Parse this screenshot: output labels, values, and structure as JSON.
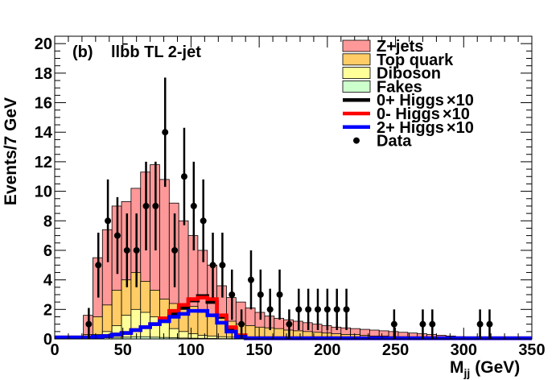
{
  "chart_data": {
    "type": "histogram-stacked",
    "panel_label": "(b)",
    "channel_label": "llb̄b TL 2-jet",
    "xlabel": "M",
    "xlabel_sub": "jj",
    "xlabel_unit": "(GeV)",
    "ylabel": "Events/7 GeV",
    "xlim": [
      0,
      350
    ],
    "ylim": [
      0,
      20.5
    ],
    "x_ticks": [
      0,
      50,
      100,
      150,
      200,
      250,
      300,
      350
    ],
    "y_ticks": [
      0,
      2,
      4,
      6,
      8,
      10,
      12,
      14,
      16,
      18,
      20
    ],
    "bin_width": 7,
    "bin_edges_start": 21,
    "stack": [
      {
        "name": "Z+jets",
        "legend": "Z+jets",
        "color": "#ff9999",
        "totals": [
          1.6,
          5.5,
          7.4,
          9.0,
          9.3,
          10.2,
          11.3,
          11.8,
          10.8,
          9.2,
          8.0,
          7.0,
          6.0,
          5.0,
          3.6,
          2.8,
          2.5,
          2.1,
          1.8,
          1.55,
          1.4,
          1.3,
          1.2,
          1.1,
          1.0,
          0.9,
          0.8,
          0.75,
          0.7,
          0.65,
          0.6,
          0.55,
          0.5,
          0.45,
          0.4,
          0.35,
          0.3,
          0.25,
          0.2,
          0.15,
          0.1
        ]
      },
      {
        "name": "Top quark",
        "legend": "Top quark",
        "color": "#ffcc66",
        "totals": [
          0.3,
          1.5,
          2.3,
          3.3,
          4.0,
          4.5,
          3.9,
          3.3,
          2.7,
          2.4,
          2.3,
          2.2,
          1.8,
          1.6,
          1.4,
          1.2,
          1.0,
          0.9,
          0.8,
          0.75,
          0.7,
          0.6,
          0.55,
          0.5,
          0.45,
          0.4,
          0.35,
          0.3,
          0.3,
          0.25,
          0.2,
          0.2,
          0.15,
          0.15,
          0.1,
          0.1,
          0.1,
          0.05,
          0.05,
          0.05,
          0.0
        ]
      },
      {
        "name": "Diboson",
        "legend": "Diboson",
        "color": "#ffff99",
        "totals": [
          0.05,
          0.3,
          0.5,
          0.9,
          1.6,
          2.0,
          1.8,
          1.5,
          1.1,
          0.7,
          0.5,
          0.35,
          0.25,
          0.2,
          0.15,
          0.12,
          0.1,
          0.08,
          0.06,
          0.05,
          0.05,
          0.04,
          0.03,
          0.03,
          0.02,
          0.02,
          0.02,
          0.01,
          0.01,
          0.01,
          0.01,
          0.01,
          0.0,
          0.0,
          0.0,
          0.0,
          0.0,
          0.0,
          0.0,
          0.0,
          0.0
        ]
      },
      {
        "name": "Fakes",
        "legend": "Fakes",
        "color": "#ccffcc",
        "totals": [
          0.02,
          0.05,
          0.08,
          0.1,
          0.12,
          0.15,
          0.15,
          0.12,
          0.1,
          0.08,
          0.06,
          0.05,
          0.04,
          0.03,
          0.02,
          0.02,
          0.02,
          0.01,
          0.01,
          0.01,
          0.01,
          0.0,
          0.0,
          0.0,
          0.0,
          0.0,
          0.0,
          0.0,
          0.0,
          0.0,
          0.0,
          0.0,
          0.0,
          0.0,
          0.0,
          0.0,
          0.0,
          0.0,
          0.0,
          0.0,
          0.0
        ]
      }
    ],
    "signals": [
      {
        "name": "0+ Higgs x10",
        "legend": "0+ Higgs",
        "scale": "×10",
        "color": "#000000",
        "x": [
          0,
          21,
          28,
          35,
          42,
          49,
          56,
          63,
          70,
          77,
          84,
          91,
          98,
          105,
          112,
          119,
          126,
          133,
          140,
          350
        ],
        "values": [
          0.1,
          0.1,
          0.15,
          0.2,
          0.3,
          0.4,
          0.6,
          0.8,
          1.0,
          1.3,
          1.7,
          2.1,
          2.6,
          2.9,
          2.5,
          1.5,
          0.7,
          0.2,
          0.05,
          0.05
        ]
      },
      {
        "name": "0- Higgs x10",
        "legend": "0- Higgs",
        "scale": "×10",
        "color": "#ff0000",
        "x": [
          0,
          21,
          28,
          35,
          42,
          49,
          56,
          63,
          70,
          77,
          84,
          91,
          98,
          105,
          112,
          119,
          126,
          133,
          140,
          350
        ],
        "values": [
          0.1,
          0.1,
          0.15,
          0.2,
          0.3,
          0.4,
          0.6,
          0.8,
          1.0,
          1.4,
          1.9,
          2.3,
          2.7,
          2.8,
          2.7,
          1.6,
          0.8,
          0.25,
          0.05,
          0.05
        ]
      },
      {
        "name": "2+ Higgs x10",
        "legend": "2+ Higgs",
        "scale": "×10",
        "color": "#0000ff",
        "x": [
          0,
          21,
          28,
          35,
          42,
          49,
          56,
          63,
          70,
          77,
          84,
          91,
          98,
          105,
          112,
          119,
          126,
          133,
          140,
          350
        ],
        "values": [
          0.1,
          0.1,
          0.15,
          0.2,
          0.3,
          0.4,
          0.6,
          0.8,
          1.0,
          1.2,
          1.5,
          1.7,
          1.9,
          1.9,
          1.6,
          1.1,
          0.5,
          0.15,
          0.05,
          0.05
        ]
      }
    ],
    "data": {
      "name": "Data",
      "legend": "Data",
      "points": [
        {
          "x": 25,
          "y": 1,
          "err": 1.1
        },
        {
          "x": 32,
          "y": 5,
          "err": 2.2
        },
        {
          "x": 39,
          "y": 8,
          "err": 2.8
        },
        {
          "x": 46,
          "y": 7,
          "err": 2.6
        },
        {
          "x": 53,
          "y": 6,
          "err": 2.5
        },
        {
          "x": 60,
          "y": 6,
          "err": 2.5
        },
        {
          "x": 67,
          "y": 9,
          "err": 3.0
        },
        {
          "x": 74,
          "y": 9,
          "err": 3.0
        },
        {
          "x": 81,
          "y": 14,
          "err": 3.7
        },
        {
          "x": 88,
          "y": 6,
          "err": 2.5
        },
        {
          "x": 95,
          "y": 11,
          "err": 3.3
        },
        {
          "x": 102,
          "y": 9,
          "err": 3.0
        },
        {
          "x": 109,
          "y": 8,
          "err": 2.8
        },
        {
          "x": 116,
          "y": 5,
          "err": 2.2
        },
        {
          "x": 123,
          "y": 5,
          "err": 2.2
        },
        {
          "x": 130,
          "y": 3,
          "err": 1.7
        },
        {
          "x": 137,
          "y": 1,
          "err": 1.0
        },
        {
          "x": 144,
          "y": 4,
          "err": 2.0
        },
        {
          "x": 151,
          "y": 3,
          "err": 1.7
        },
        {
          "x": 158,
          "y": 2,
          "err": 1.4
        },
        {
          "x": 165,
          "y": 3,
          "err": 1.7
        },
        {
          "x": 172,
          "y": 1,
          "err": 1.0
        },
        {
          "x": 179,
          "y": 2,
          "err": 1.4
        },
        {
          "x": 186,
          "y": 2,
          "err": 1.4
        },
        {
          "x": 193,
          "y": 2,
          "err": 1.4
        },
        {
          "x": 200,
          "y": 2,
          "err": 1.4
        },
        {
          "x": 207,
          "y": 2,
          "err": 1.4
        },
        {
          "x": 214,
          "y": 2,
          "err": 1.4
        },
        {
          "x": 249,
          "y": 1,
          "err": 1.0
        },
        {
          "x": 270,
          "y": 1,
          "err": 1.0
        },
        {
          "x": 277,
          "y": 1,
          "err": 1.0
        },
        {
          "x": 312,
          "y": 1,
          "err": 1.0
        },
        {
          "x": 319,
          "y": 1,
          "err": 1.0
        }
      ]
    }
  }
}
